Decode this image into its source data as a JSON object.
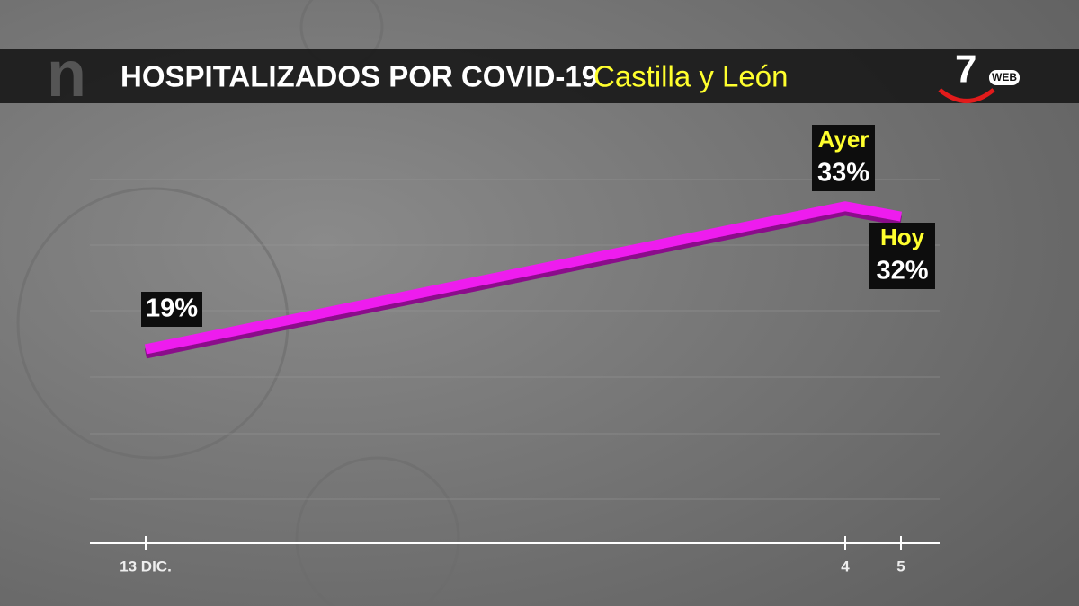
{
  "chart_data": {
    "type": "line",
    "title": "HOSPITALIZADOS POR COVID-19",
    "subtitle": "Castilla y León",
    "x": [
      "13 DIC.",
      "4",
      "5"
    ],
    "series": [
      {
        "name": "Hospitalizados",
        "color": "#ee1eee",
        "values": [
          19,
          33,
          32
        ],
        "value_labels": [
          "19%",
          "33%",
          "32%"
        ]
      }
    ],
    "annotations": [
      "Ayer",
      "Hoy"
    ],
    "ylim": [
      0,
      35
    ],
    "logos": {
      "left": "n",
      "right": "7",
      "right_tag": "WEB"
    }
  }
}
